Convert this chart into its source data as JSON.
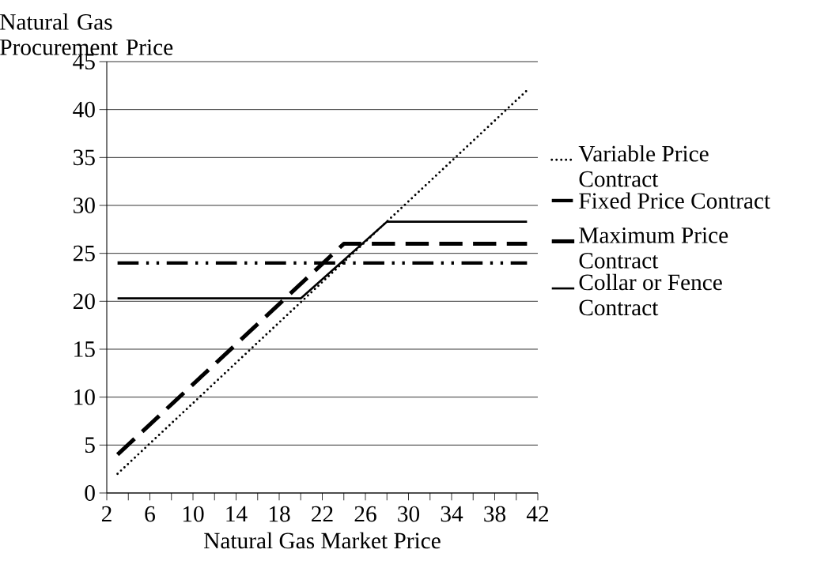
{
  "chart_data": {
    "type": "line",
    "ylabel": "Natural Gas Procurement Price",
    "xlabel": "Natural Gas Market Price",
    "xlim": [
      2,
      42
    ],
    "xticks": [
      2,
      {
        "value": 4,
        "label": null
      },
      6,
      {
        "value": 8,
        "label": null
      },
      10,
      {
        "value": 12,
        "label": null
      },
      14,
      {
        "value": 16,
        "label": null
      },
      18,
      {
        "value": 20,
        "label": null
      },
      22,
      {
        "value": 24,
        "label": null
      },
      26,
      {
        "value": 28,
        "label": null
      },
      30,
      {
        "value": 32,
        "label": null
      },
      34,
      {
        "value": 36,
        "label": null
      },
      38,
      {
        "value": 40,
        "label": null
      },
      42
    ],
    "ylim": [
      0,
      45
    ],
    "yticks": [
      0,
      5,
      10,
      15,
      20,
      25,
      30,
      35,
      40,
      45
    ],
    "grid": "y",
    "legend": "right",
    "series": [
      {
        "name": "Variable Price Contract",
        "color": "#000000",
        "line_style": "dotted",
        "x": [
          3,
          41
        ],
        "values": [
          2,
          42
        ]
      },
      {
        "name": "Fixed Price Contract",
        "color": "#000000",
        "line_style": "dashdot",
        "x": [
          3,
          41
        ],
        "values": [
          24,
          24
        ]
      },
      {
        "name": "Maximum Price Contract",
        "color": "#000000",
        "line_style": "dashed",
        "x": [
          3,
          24,
          41
        ],
        "values": [
          4,
          26,
          26
        ]
      },
      {
        "name": "Collar or Fence Contract",
        "color": "#000000",
        "line_style": "solid",
        "x": [
          3,
          20,
          28,
          41
        ],
        "values": [
          20.3,
          20.3,
          28.3,
          28.3
        ]
      }
    ]
  }
}
